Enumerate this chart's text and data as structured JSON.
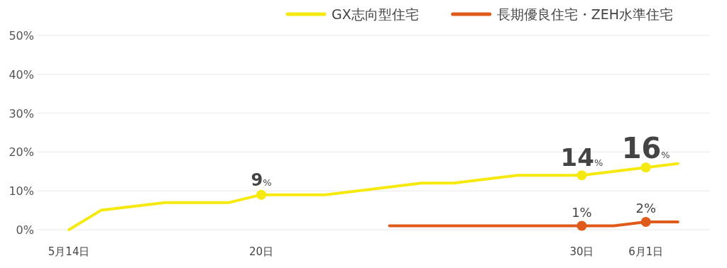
{
  "chart_data": {
    "type": "line",
    "xlim": [
      "--05-13",
      "--06-03"
    ],
    "xticks": [
      {
        "value": "--05-14",
        "label": "5月14日"
      },
      {
        "value": "--05-20",
        "label": "20日"
      },
      {
        "value": "--05-30",
        "label": "30日"
      },
      {
        "value": "--06-01",
        "label": "6月1日"
      }
    ],
    "ylim": [
      0,
      50
    ],
    "yticks": [
      {
        "value": 0,
        "label": "0%"
      },
      {
        "value": 10,
        "label": "10%"
      },
      {
        "value": 20,
        "label": "20%"
      },
      {
        "value": 30,
        "label": "30%"
      },
      {
        "value": 40,
        "label": "40%"
      },
      {
        "value": 50,
        "label": "50%"
      }
    ],
    "grid": "y",
    "legend": "top right",
    "line_style": "solid",
    "series": [
      {
        "name": "GX志向型住宅",
        "color": "#f5e90f",
        "x": [
          "--05-14",
          "--05-15",
          "--05-17",
          "--05-19",
          "--05-20",
          "--05-22",
          "--05-24",
          "--05-25",
          "--05-26",
          "--05-28",
          "--05-30",
          "--06-01",
          "--06-02"
        ],
        "values": [
          0,
          5,
          7,
          7,
          9,
          9,
          11,
          12,
          12,
          14,
          14,
          16,
          17
        ],
        "value_labels": [
          null,
          null,
          null,
          null,
          "9%",
          null,
          null,
          null,
          null,
          null,
          "14%",
          "16%",
          null
        ]
      },
      {
        "name": "長期優良住宅・ZEH水準住宅",
        "color": "#e05a1c",
        "x": [
          "--05-24",
          "--05-30",
          "--05-31",
          "--06-01",
          "--06-02"
        ],
        "values": [
          1,
          1,
          1,
          2,
          2
        ],
        "value_labels": [
          null,
          "1%",
          null,
          "2%",
          null
        ]
      }
    ]
  }
}
